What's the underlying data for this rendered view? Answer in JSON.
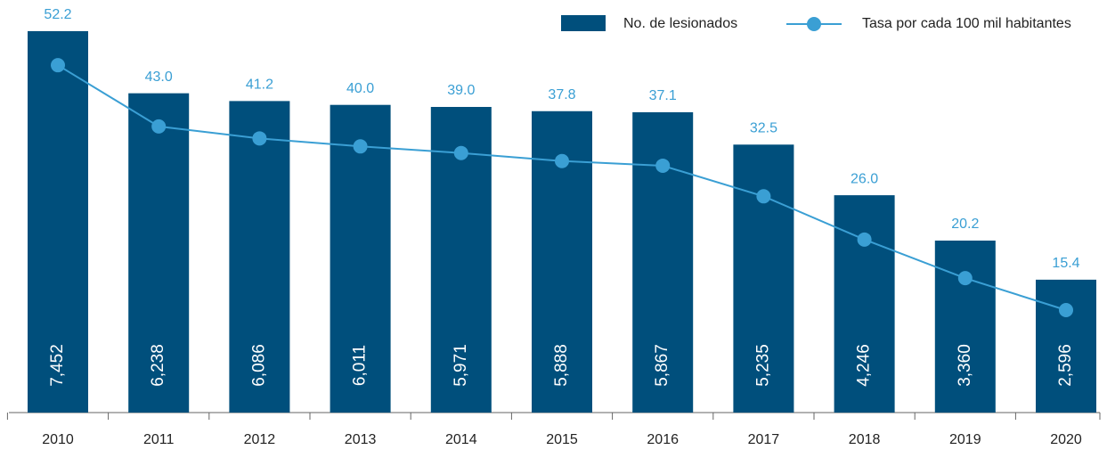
{
  "chart_data": {
    "type": "bar-line",
    "categories": [
      "2010",
      "2011",
      "2012",
      "2013",
      "2014",
      "2015",
      "2016",
      "2017",
      "2018",
      "2019",
      "2020"
    ],
    "series": [
      {
        "name": "No. de lesionados",
        "type": "bar",
        "color": "#004f7c",
        "values": [
          7452,
          6238,
          6086,
          6011,
          5971,
          5888,
          5867,
          5235,
          4246,
          3360,
          2596
        ],
        "value_labels": [
          "7,452",
          "6,238",
          "6,086",
          "6,011",
          "5,971",
          "5,888",
          "5,867",
          "5,235",
          "4,246",
          "3,360",
          "2,596"
        ]
      },
      {
        "name": "Tasa por cada 100 mil habitantes",
        "type": "line",
        "axis": "y2",
        "color": "#3a9fd4",
        "values": [
          52.2,
          43.0,
          41.2,
          40.0,
          39.0,
          37.8,
          37.1,
          32.5,
          26.0,
          20.2,
          15.4
        ],
        "value_labels": [
          "52.2",
          "43.0",
          "41.2",
          "40.0",
          "39.0",
          "37.8",
          "37.1",
          "32.5",
          "26.0",
          "20.2",
          "15.4"
        ]
      }
    ],
    "ylim": [
      0,
      8060
    ],
    "y2lim": [
      0,
      62
    ],
    "legend": "top-right"
  }
}
